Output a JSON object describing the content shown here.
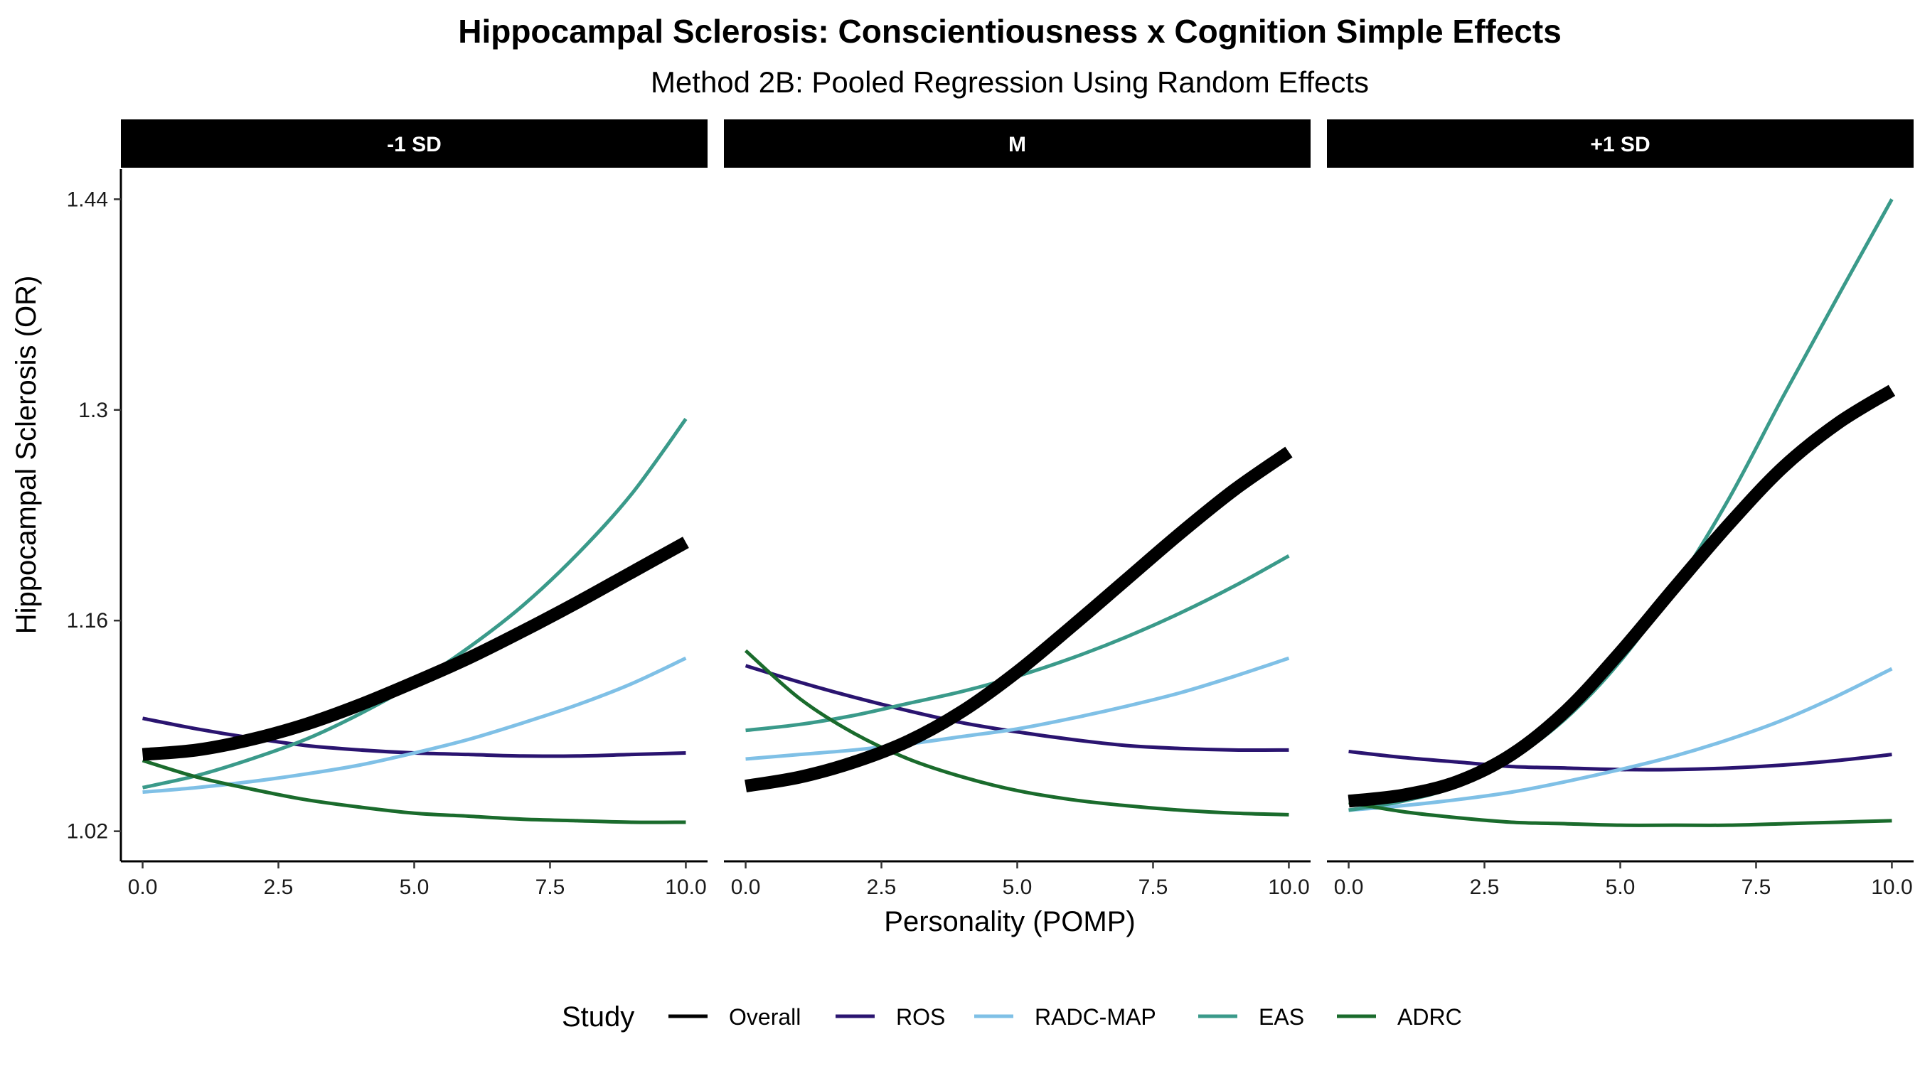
{
  "chart_data": {
    "type": "line",
    "title": "Hippocampal Sclerosis: Conscientiousness x Cognition Simple Effects",
    "subtitle": "Method 2B: Pooled Regression Using Random Effects",
    "xlabel": "Personality (POMP)",
    "ylabel": "Hippocampal Sclerosis (OR)",
    "xlim": [
      -0.4,
      10.4
    ],
    "ylim": [
      1.0,
      1.46
    ],
    "x_ticks": [
      0,
      2.5,
      5,
      7.5,
      10
    ],
    "x_tick_labels": [
      "0.0",
      "2.5",
      "5.0",
      "7.5",
      "10.0"
    ],
    "y_ticks": [
      1.02,
      1.16,
      1.3,
      1.44
    ],
    "y_tick_labels": [
      "1.02",
      "1.16",
      "1.3",
      "1.44"
    ],
    "grid": false,
    "legend": {
      "title": "Study",
      "position": "bottom",
      "entries": [
        "Overall",
        "ROS",
        "RADC-MAP",
        "EAS",
        "ADRC"
      ]
    },
    "series_styles": {
      "Overall": {
        "color": "#000000",
        "width": 18
      },
      "ROS": {
        "color": "#2a1470",
        "width": 5
      },
      "RADC-MAP": {
        "color": "#7fc0e6",
        "width": 5
      },
      "EAS": {
        "color": "#3a9a8a",
        "width": 5
      },
      "ADRC": {
        "color": "#1a6b2c",
        "width": 5
      }
    },
    "panels": [
      {
        "label": "-1 SD",
        "series": [
          {
            "name": "Overall",
            "x": [
              0,
              1,
              2,
              3,
              4,
              5,
              6,
              7,
              8,
              9,
              10
            ],
            "y": [
              1.071,
              1.074,
              1.081,
              1.091,
              1.104,
              1.119,
              1.135,
              1.153,
              1.172,
              1.192,
              1.212
            ]
          },
          {
            "name": "ROS",
            "x": [
              0,
              1,
              2,
              3,
              4,
              5,
              6,
              7,
              8,
              9,
              10
            ],
            "y": [
              1.095,
              1.088,
              1.082,
              1.077,
              1.074,
              1.072,
              1.071,
              1.07,
              1.07,
              1.071,
              1.072
            ]
          },
          {
            "name": "RADC-MAP",
            "x": [
              0,
              1,
              2,
              3,
              4,
              5,
              6,
              7,
              8,
              9,
              10
            ],
            "y": [
              1.046,
              1.049,
              1.053,
              1.058,
              1.064,
              1.072,
              1.081,
              1.092,
              1.104,
              1.118,
              1.135
            ]
          },
          {
            "name": "EAS",
            "x": [
              0,
              1,
              2,
              3,
              4,
              5,
              6,
              7,
              8,
              9,
              10
            ],
            "y": [
              1.049,
              1.057,
              1.068,
              1.081,
              1.098,
              1.118,
              1.142,
              1.17,
              1.204,
              1.244,
              1.294
            ]
          },
          {
            "name": "ADRC",
            "x": [
              0,
              1,
              2,
              3,
              4,
              5,
              6,
              7,
              8,
              9,
              10
            ],
            "y": [
              1.067,
              1.056,
              1.048,
              1.041,
              1.036,
              1.032,
              1.03,
              1.028,
              1.027,
              1.026,
              1.026
            ]
          }
        ]
      },
      {
        "label": "M",
        "series": [
          {
            "name": "Overall",
            "x": [
              0,
              1,
              2,
              3,
              4,
              5,
              6,
              7,
              8,
              9,
              10
            ],
            "y": [
              1.05,
              1.056,
              1.066,
              1.08,
              1.1,
              1.126,
              1.156,
              1.187,
              1.218,
              1.247,
              1.272
            ]
          },
          {
            "name": "ROS",
            "x": [
              0,
              1,
              2,
              3,
              4,
              5,
              6,
              7,
              8,
              9,
              10
            ],
            "y": [
              1.13,
              1.119,
              1.109,
              1.1,
              1.092,
              1.086,
              1.081,
              1.077,
              1.075,
              1.074,
              1.074
            ]
          },
          {
            "name": "RADC-MAP",
            "x": [
              0,
              1,
              2,
              3,
              4,
              5,
              6,
              7,
              8,
              9,
              10
            ],
            "y": [
              1.068,
              1.071,
              1.074,
              1.078,
              1.083,
              1.088,
              1.095,
              1.103,
              1.112,
              1.123,
              1.135
            ]
          },
          {
            "name": "EAS",
            "x": [
              0,
              1,
              2,
              3,
              4,
              5,
              6,
              7,
              8,
              9,
              10
            ],
            "y": [
              1.087,
              1.091,
              1.097,
              1.105,
              1.113,
              1.123,
              1.135,
              1.149,
              1.165,
              1.183,
              1.203
            ]
          },
          {
            "name": "ADRC",
            "x": [
              0,
              1,
              2,
              3,
              4,
              5,
              6,
              7,
              8,
              9,
              10
            ],
            "y": [
              1.14,
              1.108,
              1.085,
              1.068,
              1.056,
              1.047,
              1.041,
              1.037,
              1.034,
              1.032,
              1.031
            ]
          }
        ]
      },
      {
        "label": "+1 SD",
        "series": [
          {
            "name": "Overall",
            "x": [
              0,
              1,
              2,
              3,
              4,
              5,
              6,
              7,
              8,
              9,
              10
            ],
            "y": [
              1.04,
              1.044,
              1.053,
              1.071,
              1.1,
              1.139,
              1.182,
              1.224,
              1.262,
              1.291,
              1.313
            ]
          },
          {
            "name": "ROS",
            "x": [
              0,
              1,
              2,
              3,
              4,
              5,
              6,
              7,
              8,
              9,
              10
            ],
            "y": [
              1.073,
              1.069,
              1.066,
              1.063,
              1.062,
              1.061,
              1.061,
              1.062,
              1.064,
              1.067,
              1.071
            ]
          },
          {
            "name": "RADC-MAP",
            "x": [
              0,
              1,
              2,
              3,
              4,
              5,
              6,
              7,
              8,
              9,
              10
            ],
            "y": [
              1.034,
              1.037,
              1.041,
              1.046,
              1.053,
              1.061,
              1.07,
              1.081,
              1.094,
              1.11,
              1.128
            ]
          },
          {
            "name": "EAS",
            "x": [
              0,
              1,
              2,
              3,
              4,
              5,
              6,
              7,
              8,
              9,
              10
            ],
            "y": [
              1.034,
              1.04,
              1.05,
              1.068,
              1.095,
              1.133,
              1.182,
              1.241,
              1.309,
              1.375,
              1.44
            ]
          },
          {
            "name": "ADRC",
            "x": [
              0,
              1,
              2,
              3,
              4,
              5,
              6,
              7,
              8,
              9,
              10
            ],
            "y": [
              1.039,
              1.033,
              1.029,
              1.026,
              1.025,
              1.024,
              1.024,
              1.024,
              1.025,
              1.026,
              1.027
            ]
          }
        ]
      }
    ]
  }
}
